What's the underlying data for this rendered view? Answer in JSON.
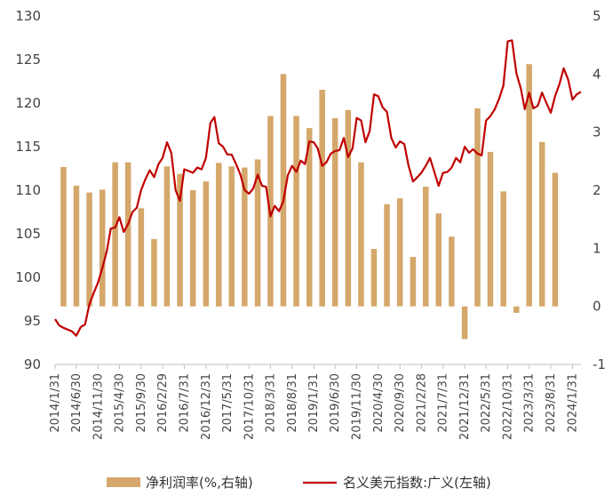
{
  "chart_data": {
    "type": "bar+line",
    "colors": {
      "bar": "#D4A76A",
      "line": "#C00000"
    },
    "left_axis": {
      "min": 90,
      "max": 130,
      "ticks": [
        90,
        95,
        100,
        105,
        110,
        115,
        120,
        125,
        130
      ]
    },
    "right_axis": {
      "min": -1,
      "max": 5,
      "ticks": [
        -1,
        0,
        1,
        2,
        3,
        4,
        5
      ]
    },
    "x_ticks": [
      "2014/1/31",
      "2014/6/30",
      "2014/11/30",
      "2015/4/30",
      "2015/9/30",
      "2016/2/29",
      "2016/7/31",
      "2016/12/31",
      "2017/5/31",
      "2017/10/31",
      "2018/3/31",
      "2018/8/31",
      "2019/1/31",
      "2019/6/30",
      "2019/11/30",
      "2020/4/30",
      "2020/9/30",
      "2021/2/28",
      "2021/7/31",
      "2021/12/31",
      "2022/5/31",
      "2022/10/31",
      "2023/3/31",
      "2023/8/31",
      "2024/1/31"
    ],
    "bars": {
      "name": "净利润率(%,右轴)",
      "dates": [
        "2014/3/31",
        "2014/6/30",
        "2014/9/30",
        "2014/12/31",
        "2015/3/31",
        "2015/6/30",
        "2015/9/30",
        "2015/12/31",
        "2016/3/31",
        "2016/6/30",
        "2016/9/30",
        "2016/12/31",
        "2017/3/31",
        "2017/6/30",
        "2017/9/30",
        "2017/12/31",
        "2018/3/31",
        "2018/6/30",
        "2018/9/30",
        "2018/12/31",
        "2019/3/31",
        "2019/6/30",
        "2019/9/30",
        "2019/12/31",
        "2020/3/31",
        "2020/6/30",
        "2020/9/30",
        "2020/12/31",
        "2021/3/31",
        "2021/6/30",
        "2021/9/30",
        "2021/12/31",
        "2022/3/31",
        "2022/6/30",
        "2022/9/30",
        "2022/12/31",
        "2023/3/31",
        "2023/6/30",
        "2023/9/30"
      ],
      "values": [
        2.4,
        2.08,
        1.96,
        2.01,
        2.48,
        2.48,
        1.69,
        1.16,
        2.41,
        2.28,
        2.0,
        2.15,
        2.47,
        2.41,
        2.39,
        2.53,
        3.28,
        4.0,
        3.28,
        3.07,
        3.73,
        3.24,
        3.38,
        2.48,
        0.99,
        1.76,
        1.86,
        0.85,
        2.06,
        1.6,
        1.2,
        -0.56,
        3.41,
        2.66,
        1.98,
        -0.11,
        4.17,
        2.83,
        2.3
      ]
    },
    "line": {
      "name": "名义美元指数:广义(左轴)",
      "dates": [
        "2014/1/31",
        "2014/2/28",
        "2014/3/31",
        "2014/4/30",
        "2014/5/31",
        "2014/6/30",
        "2014/7/31",
        "2014/8/31",
        "2014/9/30",
        "2014/10/31",
        "2014/11/30",
        "2014/12/31",
        "2015/1/31",
        "2015/2/28",
        "2015/3/31",
        "2015/4/30",
        "2015/5/31",
        "2015/6/30",
        "2015/7/31",
        "2015/8/31",
        "2015/9/30",
        "2015/10/31",
        "2015/11/30",
        "2015/12/31",
        "2016/1/31",
        "2016/2/29",
        "2016/3/31",
        "2016/4/30",
        "2016/5/31",
        "2016/6/30",
        "2016/7/31",
        "2016/8/31",
        "2016/9/30",
        "2016/10/31",
        "2016/11/30",
        "2016/12/31",
        "2017/1/31",
        "2017/2/28",
        "2017/3/31",
        "2017/4/30",
        "2017/5/31",
        "2017/6/30",
        "2017/7/31",
        "2017/8/31",
        "2017/9/30",
        "2017/10/31",
        "2017/11/30",
        "2017/12/31",
        "2018/1/31",
        "2018/2/28",
        "2018/3/31",
        "2018/4/30",
        "2018/5/31",
        "2018/6/30",
        "2018/7/31",
        "2018/8/31",
        "2018/9/30",
        "2018/10/31",
        "2018/11/30",
        "2018/12/31",
        "2019/1/31",
        "2019/2/28",
        "2019/3/31",
        "2019/4/30",
        "2019/5/31",
        "2019/6/30",
        "2019/7/31",
        "2019/8/31",
        "2019/9/30",
        "2019/10/31",
        "2019/11/30",
        "2019/12/31",
        "2020/1/31",
        "2020/2/29",
        "2020/3/31",
        "2020/4/30",
        "2020/5/31",
        "2020/6/30",
        "2020/7/31",
        "2020/8/31",
        "2020/9/30",
        "2020/10/31",
        "2020/11/30",
        "2020/12/31",
        "2021/1/31",
        "2021/2/28",
        "2021/3/31",
        "2021/4/30",
        "2021/5/31",
        "2021/6/30",
        "2021/7/31",
        "2021/8/31",
        "2021/9/30",
        "2021/10/31",
        "2021/11/30",
        "2021/12/31",
        "2022/1/31",
        "2022/2/28",
        "2022/3/31",
        "2022/4/30",
        "2022/5/31",
        "2022/6/30",
        "2022/7/31",
        "2022/8/31",
        "2022/9/30",
        "2022/10/31",
        "2022/11/30",
        "2022/12/31",
        "2023/1/31",
        "2023/2/28",
        "2023/3/31",
        "2023/4/30",
        "2023/5/31",
        "2023/6/30",
        "2023/7/31",
        "2023/8/31",
        "2023/9/30",
        "2023/10/31",
        "2023/11/30",
        "2023/12/31",
        "2024/1/31",
        "2024/2/29",
        "2024/3/31"
      ],
      "values": [
        95.2,
        94.5,
        94.2,
        94.0,
        93.8,
        93.3,
        94.3,
        94.6,
        96.9,
        98.2,
        99.4,
        101.1,
        103.0,
        105.6,
        105.7,
        106.9,
        105.2,
        106.1,
        107.5,
        108.0,
        110.0,
        111.3,
        112.3,
        111.5,
        113.0,
        113.7,
        115.5,
        114.3,
        110.0,
        108.8,
        112.4,
        112.2,
        112.0,
        112.6,
        112.4,
        113.7,
        117.7,
        118.4,
        115.4,
        115.0,
        114.1,
        114.1,
        113.0,
        111.8,
        110.0,
        109.6,
        110.2,
        111.8,
        110.5,
        110.4,
        107.0,
        108.2,
        107.6,
        108.7,
        111.7,
        112.8,
        112.1,
        113.4,
        113.0,
        115.6,
        115.5,
        114.8,
        112.8,
        113.2,
        114.2,
        114.5,
        114.6,
        116.0,
        113.8,
        114.8,
        118.3,
        118.0,
        115.5,
        116.8,
        121.0,
        120.8,
        119.5,
        119.0,
        116.0,
        114.9,
        115.6,
        115.3,
        112.8,
        111.0,
        111.5,
        112.0,
        112.8,
        113.7,
        112.1,
        110.5,
        112.0,
        112.1,
        112.6,
        113.7,
        113.2,
        115.0,
        114.3,
        114.7,
        114.2,
        114.0,
        118.0,
        118.5,
        119.3,
        120.5,
        122.0,
        127.1,
        127.2,
        123.4,
        121.7,
        119.3,
        121.2,
        119.4,
        119.7,
        121.2,
        120.0,
        118.9,
        120.8,
        122.2,
        124.0,
        122.7,
        120.4,
        121.0,
        121.3
      ]
    },
    "legend": [
      {
        "label": "净利润率(%,右轴)",
        "kind": "bar"
      },
      {
        "label": "名义美元指数:广义(左轴)",
        "kind": "line"
      }
    ]
  }
}
